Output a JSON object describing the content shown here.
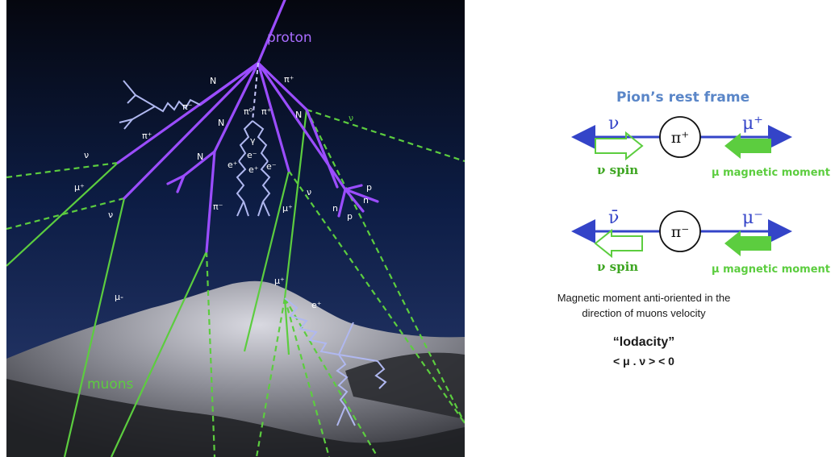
{
  "shower": {
    "labels": {
      "proton": "proton",
      "n_top": "N",
      "pi_plus_top": "π⁺",
      "pi_minus_left": "π⁻",
      "pi_plus_left": "π⁺",
      "pi0": "π⁰",
      "pi_plus_mid": "π⁺",
      "n_mid": "N",
      "n_right": "N",
      "nu_right_top": "ν",
      "gamma": "γ",
      "n_left_low": "N",
      "e_plus_1": "e⁺",
      "e_minus_1": "e⁻",
      "e_plus_2": "e⁺",
      "e_minus_2": "e⁻",
      "nu_left_1": "ν",
      "mu_plus_left": "μ⁺",
      "nu_left_2": "ν",
      "pi_minus_low": "π⁻",
      "mu_plus_mid": "μ⁺",
      "nu_mid": "ν",
      "p_1": "p",
      "n_hadron_1": "n",
      "n_hadron_2": "n",
      "p_2": "p",
      "mu_minus": "μ-",
      "mu_plus_low": "μ⁺",
      "e_plus_low": "e⁺",
      "muons": "muons"
    }
  },
  "diagram": {
    "title": "Pion’s rest frame",
    "top": {
      "nu": "ν",
      "pion": "π⁺",
      "muon": "μ⁺",
      "spin_label": "ν spin",
      "moment_label": "μ magnetic moment"
    },
    "bottom": {
      "nu": "ν̄",
      "pion": "π⁻",
      "muon": "μ⁻",
      "spin_label": "ν spin",
      "moment_label": "μ magnetic moment"
    }
  },
  "notes": {
    "line1": "Magnetic moment anti-oriented in the",
    "line2": "direction of muons velocity",
    "term": "“lodacity”",
    "formula": "< μ . ν > < 0"
  },
  "colors": {
    "pion_purple": "#9b4dff",
    "electron_blue": "#b0b8f0",
    "neutrino_green": "#5ccd3f",
    "diagram_blue": "#3444c8",
    "title_blue": "#5a86c8",
    "arrow_green": "#5ccd3f"
  }
}
